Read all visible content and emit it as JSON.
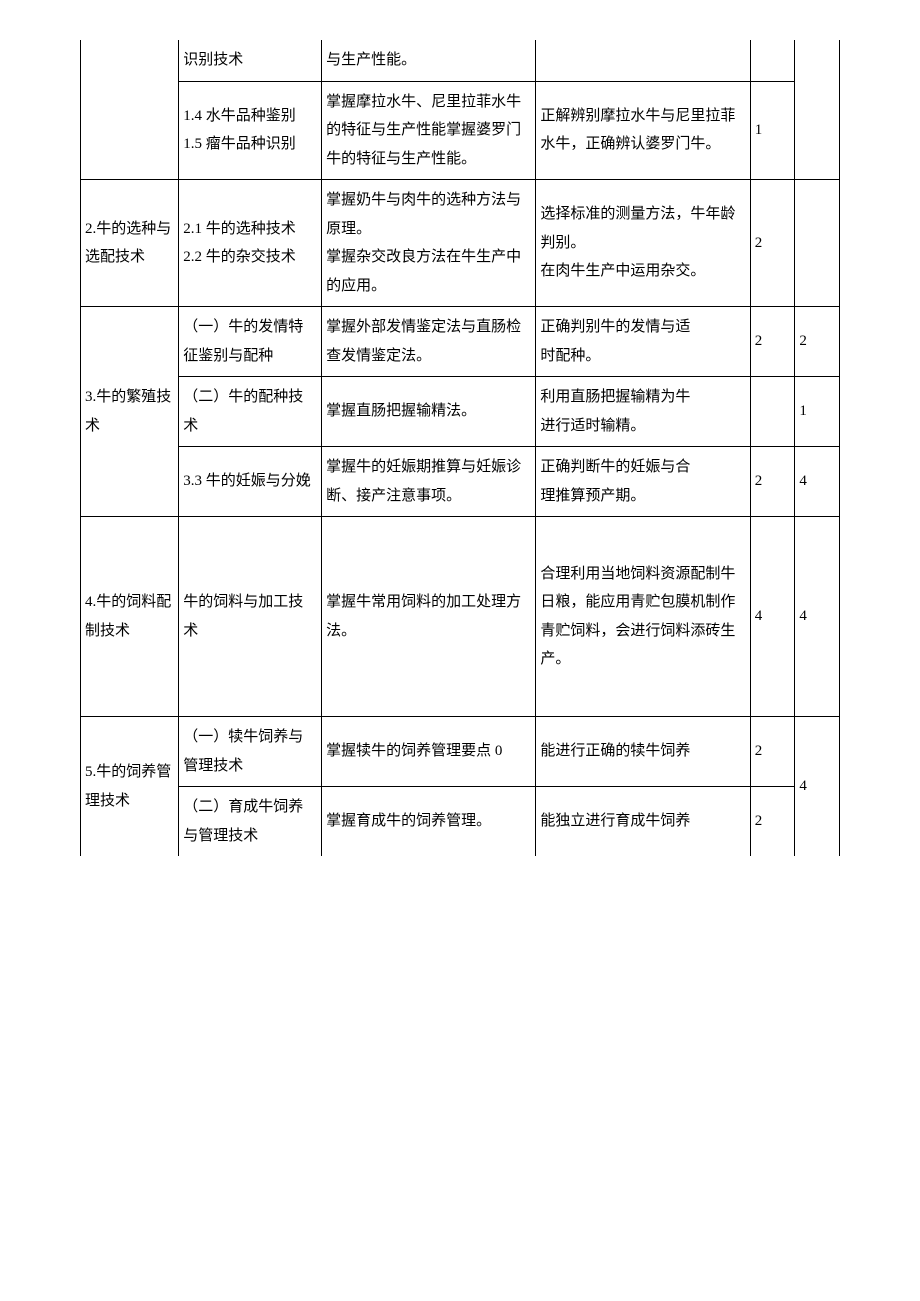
{
  "rows": [
    {
      "c0": "",
      "c1": "识别技术",
      "c2": "与生产性能。",
      "c3": "",
      "c4": "",
      "c5": "",
      "open": {
        "c0": "tb",
        "c3": "t",
        "c4": "t",
        "c5": "tb",
        "c1": "t",
        "c2": "t"
      }
    },
    {
      "c0": "",
      "c1": "1.4 水牛品种鉴别\n1.5 瘤牛品种识别",
      "c2": "掌握摩拉水牛、尼里拉菲水牛的特征与生产性能掌握婆罗门牛的特征与生产性能。",
      "c3": "正解辨别摩拉水牛与尼里拉菲水牛，正确辨认婆罗门牛。",
      "c4": "1",
      "c5": "",
      "open": {
        "c0": "t",
        "c5": "t"
      }
    },
    {
      "c0": "2.牛的选种与选配技术",
      "c1": "2.1 牛的选种技术\n2.2 牛的杂交技术",
      "c2": "掌握奶牛与肉牛的选种方法与原理。\n掌握杂交改良方法在牛生产中的应用。",
      "c3": "选择标准的测量方法，牛年龄判别。\n在肉牛生产中运用杂交。",
      "c4": "2",
      "c5": ""
    },
    {
      "c0_span": 3,
      "c0": "3.牛的繁殖技术",
      "rows": [
        {
          "c1": "（一）牛的发情特\n征鉴别与配种",
          "c2": "掌握外部发情鉴定法与直肠检查发情鉴定法。",
          "c3": "正确判别牛的发情与适\n时配种。",
          "c4": "2",
          "c5": "2"
        },
        {
          "c1": "（二）牛的配种技\n术",
          "c2": "掌握直肠把握输精法。",
          "c3": "利用直肠把握输精为牛\n进行适时输精。",
          "c4": "",
          "c5": "1"
        },
        {
          "c1": "3.3 牛的妊娠与分娩",
          "c2": "掌握牛的妊娠期推算与妊娠诊断、接产注意事项。",
          "c3": "正确判断牛的妊娠与合\n理推算预产期。",
          "c4": "2",
          "c5": "4"
        }
      ]
    },
    {
      "c0": "4.牛的饲料配制技术",
      "c1": "牛的饲料与加工技术",
      "c2": "掌握牛常用饲料的加工处理方法。",
      "c3": "合理利用当地饲料资源配制牛日粮，能应用青贮包膜机制作青贮饲料，会进行饲料添砖生产。",
      "c4": "4",
      "c5": "4",
      "tall": true
    },
    {
      "c0_span": 2,
      "c0": "5.牛的饲养管理技术",
      "open_c0_bottom": true,
      "c5": "4",
      "c5_span": 2,
      "open_c5_bottom": true,
      "rows": [
        {
          "c1": "（一）犊牛饲养与管理技术",
          "c2": "掌握犊牛的饲养管理要点 0",
          "c3": "能进行正确的犊牛饲养",
          "c4": "2"
        },
        {
          "c1": "（二）育成牛饲养\n与管理技术",
          "c2": "掌握育成牛的饲养管理。",
          "c3": "能独立进行育成牛饲养",
          "c4": "2",
          "open_bottom": true
        }
      ]
    }
  ]
}
